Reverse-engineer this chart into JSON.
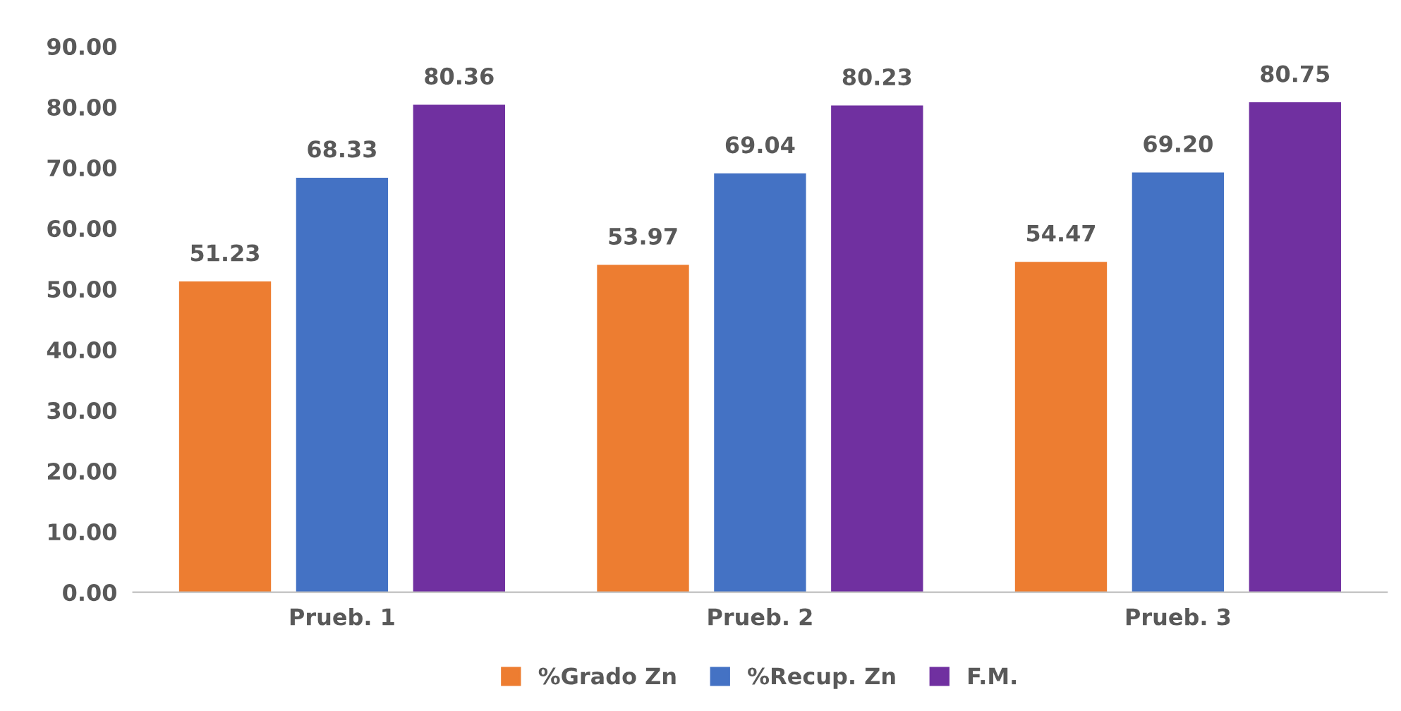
{
  "chart_data": {
    "type": "bar",
    "categories": [
      "Prueb. 1",
      "Prueb. 2",
      "Prueb. 3"
    ],
    "series": [
      {
        "name": "%Grado Zn",
        "color": "#ed7d31",
        "values": [
          51.23,
          53.97,
          54.47
        ],
        "value_labels": [
          "51.23",
          "53.97",
          "54.47"
        ]
      },
      {
        "name": "%Recup. Zn",
        "color": "#4472c4",
        "values": [
          68.33,
          69.04,
          69.2
        ],
        "value_labels": [
          "68.33",
          "69.04",
          "69.20"
        ]
      },
      {
        "name": "F.M.",
        "color": "#7030a0",
        "values": [
          80.36,
          80.23,
          80.75
        ],
        "value_labels": [
          "80.36",
          "80.23",
          "80.75"
        ]
      }
    ],
    "ylim": [
      0,
      90
    ],
    "yticks": [
      {
        "value": 0,
        "label": "0.00"
      },
      {
        "value": 10,
        "label": "10.00"
      },
      {
        "value": 20,
        "label": "20.00"
      },
      {
        "value": 30,
        "label": "30.00"
      },
      {
        "value": 40,
        "label": "40.00"
      },
      {
        "value": 50,
        "label": "50.00"
      },
      {
        "value": 60,
        "label": "60.00"
      },
      {
        "value": 70,
        "label": "70.00"
      },
      {
        "value": 80,
        "label": "80.00"
      },
      {
        "value": 90,
        "label": "90.00"
      }
    ],
    "grid": false,
    "legend": "bottom"
  }
}
